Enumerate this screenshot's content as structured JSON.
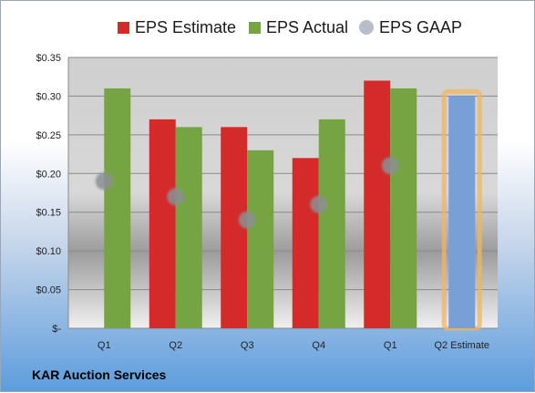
{
  "chart_data": {
    "type": "bar",
    "categories": [
      "Q1",
      "Q2",
      "Q3",
      "Q4",
      "Q1",
      "Q2 Estimate"
    ],
    "series": [
      {
        "name": "EPS Estimate",
        "color": "#d42a2a",
        "values": [
          null,
          0.27,
          0.26,
          0.22,
          0.32,
          null
        ]
      },
      {
        "name": "EPS Actual",
        "color": "#77a443",
        "values": [
          0.31,
          0.26,
          0.23,
          0.27,
          0.31,
          0.3
        ]
      },
      {
        "name": "EPS GAAP",
        "color": "#b8bec7",
        "values": [
          0.19,
          0.17,
          0.14,
          0.16,
          0.21,
          null
        ]
      }
    ],
    "highlight": {
      "category": "Q2 Estimate",
      "value": 0.3,
      "color": "#78a0d6",
      "outline": "#f3b45c"
    },
    "yticks": [
      "$0.35",
      "$0.30",
      "$0.25",
      "$0.20",
      "$0.15",
      "$0.10",
      "$0.05",
      "$-"
    ],
    "ylim": [
      0,
      0.35
    ],
    "grid": true,
    "legend": "top"
  },
  "footer": {
    "company": "KAR Auction Services"
  }
}
